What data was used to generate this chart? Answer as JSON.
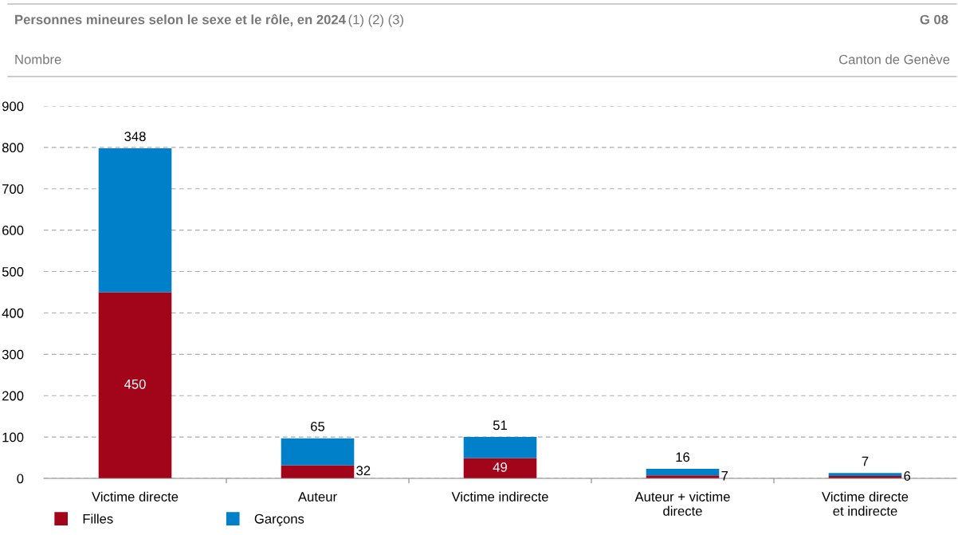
{
  "chart_data": {
    "type": "bar",
    "title": "Personnes mineures selon le sexe et le rôle, en 2024",
    "subtitle": "Canton de Genève",
    "ylabel": "Nombre",
    "annotations": [
      "(1) (2) (3)",
      "G 08"
    ],
    "categories": [
      "Victime directe",
      "Auteur",
      "Victime indirecte",
      "Auteur + victime\ndirecte",
      "Victime directe\net indirecte"
    ],
    "series": [
      {
        "name": "Filles",
        "color": "#a20519",
        "values": [
          450,
          32,
          49,
          7,
          6
        ]
      },
      {
        "name": "Garçons",
        "color": "#0080c8",
        "values": [
          348,
          65,
          51,
          16,
          7
        ]
      }
    ],
    "stacked": true,
    "data_labels": true,
    "ylim": [
      0,
      900
    ],
    "yticks": [
      0,
      100,
      200,
      300,
      400,
      500,
      600,
      700,
      800,
      900
    ],
    "grid": "y",
    "legend": "bottom left"
  }
}
